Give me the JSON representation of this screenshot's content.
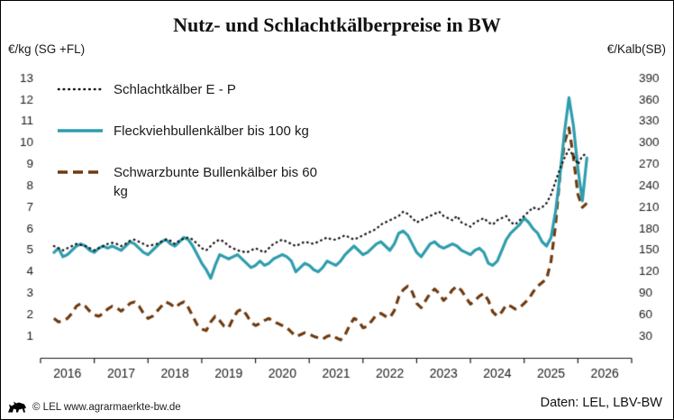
{
  "title": "Nutz- und Schlachtkälberpreise in BW",
  "left_axis_label": "€/kg (SG +FL)",
  "right_axis_label": "€/Kalb(SB)",
  "legend": [
    {
      "label": "Schlachtkälber E - P",
      "style": "dotted",
      "color": "#1a1a1a"
    },
    {
      "label": "Fleckviehbullenkälber bis 100 kg",
      "style": "solid",
      "color": "#2e9dad"
    },
    {
      "label": "Schwarzbunte Bullenkälber bis 60 kg",
      "style": "dashed",
      "color": "#6e3a10"
    }
  ],
  "footer": {
    "copyright": "© LEL www.agrarmaerkte-bw.de",
    "source": "Daten: LEL, LBV-BW"
  },
  "chart_data": {
    "type": "line",
    "title": "Nutz- und Schlachtkälberpreise in BW",
    "x_start": 2015.75,
    "x_step_months": 1,
    "x_axis": {
      "min": 2015.5,
      "max": 2026.5,
      "ticks": [
        2016,
        2017,
        2018,
        2019,
        2020,
        2021,
        2022,
        2023,
        2024,
        2025,
        2026
      ]
    },
    "left_axis": {
      "label": "€/kg (SG +FL)",
      "min": 0,
      "max": 13,
      "ticks": [
        1,
        2,
        3,
        4,
        5,
        6,
        7,
        8,
        9,
        10,
        11,
        12,
        13
      ]
    },
    "right_axis": {
      "label": "€/Kalb(SB)",
      "min": 0,
      "max": 390,
      "ticks": [
        30,
        60,
        90,
        120,
        150,
        180,
        210,
        240,
        270,
        300,
        330,
        360,
        390
      ]
    },
    "grid": false,
    "legend_position": "inside-top-left",
    "series": [
      {
        "name": "Schlachtkälber E - P",
        "axis": "left",
        "unit": "€/kg",
        "color": "#1a1a1a",
        "line": "dotted",
        "values": [
          5.2,
          5.1,
          5.0,
          5.1,
          5.2,
          5.3,
          5.25,
          5.2,
          5.1,
          5.0,
          5.1,
          5.2,
          5.3,
          5.35,
          5.3,
          5.2,
          5.3,
          5.45,
          5.5,
          5.4,
          5.3,
          5.2,
          5.25,
          5.3,
          5.4,
          5.5,
          5.45,
          5.3,
          5.45,
          5.55,
          5.6,
          5.5,
          5.3,
          5.1,
          5.0,
          5.2,
          5.4,
          5.5,
          5.4,
          5.2,
          5.1,
          5.0,
          4.95,
          4.9,
          5.0,
          5.1,
          5.0,
          4.9,
          5.1,
          5.3,
          5.4,
          5.5,
          5.4,
          5.3,
          5.2,
          5.3,
          5.4,
          5.35,
          5.3,
          5.4,
          5.5,
          5.6,
          5.5,
          5.5,
          5.6,
          5.7,
          5.6,
          5.5,
          5.6,
          5.7,
          5.8,
          5.9,
          6.0,
          6.2,
          6.3,
          6.4,
          6.5,
          6.6,
          6.8,
          6.7,
          6.5,
          6.3,
          6.4,
          6.5,
          6.6,
          6.7,
          6.8,
          6.6,
          6.5,
          6.4,
          6.6,
          6.3,
          6.2,
          6.1,
          6.3,
          6.4,
          6.5,
          6.3,
          6.2,
          6.4,
          6.5,
          6.6,
          6.3,
          6.2,
          6.4,
          6.6,
          6.8,
          7.0,
          6.9,
          7.0,
          7.2,
          7.6,
          8.2,
          8.8,
          9.3,
          9.7,
          9.4,
          9.0,
          9.4,
          9.5
        ]
      },
      {
        "name": "Fleckviehbullenkälber bis 100 kg",
        "axis": "left",
        "unit": "€/kg",
        "color": "#2e9dad",
        "line": "solid",
        "values": [
          4.9,
          5.1,
          4.7,
          4.8,
          5.0,
          5.2,
          5.3,
          5.2,
          5.0,
          4.9,
          5.1,
          5.2,
          5.1,
          5.2,
          5.1,
          5.0,
          5.2,
          5.4,
          5.3,
          5.1,
          4.9,
          4.8,
          5.0,
          5.2,
          5.4,
          5.5,
          5.3,
          5.2,
          5.4,
          5.6,
          5.5,
          5.2,
          4.8,
          4.4,
          4.1,
          3.7,
          4.3,
          4.8,
          4.7,
          4.6,
          4.7,
          4.8,
          4.6,
          4.4,
          4.2,
          4.3,
          4.5,
          4.3,
          4.4,
          4.6,
          4.7,
          4.8,
          4.7,
          4.5,
          4.0,
          4.2,
          4.4,
          4.3,
          4.1,
          4.0,
          4.2,
          4.5,
          4.4,
          4.3,
          4.5,
          4.8,
          5.0,
          5.2,
          5.0,
          4.8,
          4.9,
          5.1,
          5.3,
          5.4,
          5.2,
          5.0,
          5.3,
          5.8,
          5.9,
          5.7,
          5.3,
          4.9,
          4.7,
          5.0,
          5.3,
          5.4,
          5.2,
          5.1,
          5.2,
          5.3,
          5.2,
          5.0,
          4.9,
          4.8,
          5.0,
          5.1,
          4.9,
          4.4,
          4.3,
          4.5,
          5.0,
          5.5,
          5.8,
          6.0,
          6.2,
          6.5,
          6.3,
          6.0,
          5.8,
          5.4,
          5.2,
          5.6,
          6.8,
          8.5,
          10.5,
          12.1,
          10.8,
          8.8,
          7.3,
          9.3
        ]
      },
      {
        "name": "Schwarzbunte Bullenkälber bis 60 kg",
        "axis": "right",
        "unit": "€/Kalb",
        "color": "#6e3a10",
        "line": "dashed",
        "values": [
          55,
          50,
          52,
          55,
          62,
          72,
          76,
          72,
          65,
          60,
          58,
          62,
          68,
          72,
          70,
          65,
          70,
          76,
          78,
          72,
          62,
          55,
          58,
          65,
          72,
          78,
          75,
          70,
          75,
          78,
          70,
          58,
          46,
          40,
          38,
          50,
          58,
          52,
          44,
          42,
          55,
          65,
          68,
          60,
          50,
          45,
          48,
          52,
          55,
          50,
          48,
          45,
          42,
          36,
          30,
          32,
          35,
          33,
          30,
          28,
          26,
          30,
          32,
          28,
          25,
          32,
          45,
          55,
          52,
          42,
          44,
          52,
          60,
          62,
          58,
          56,
          66,
          85,
          95,
          100,
          92,
          76,
          70,
          80,
          90,
          96,
          90,
          80,
          86,
          95,
          100,
          94,
          84,
          75,
          80,
          86,
          90,
          80,
          64,
          58,
          64,
          74,
          72,
          68,
          70,
          76,
          82,
          92,
          100,
          105,
          110,
          135,
          185,
          255,
          300,
          321,
          280,
          228,
          210,
          216
        ]
      }
    ]
  }
}
